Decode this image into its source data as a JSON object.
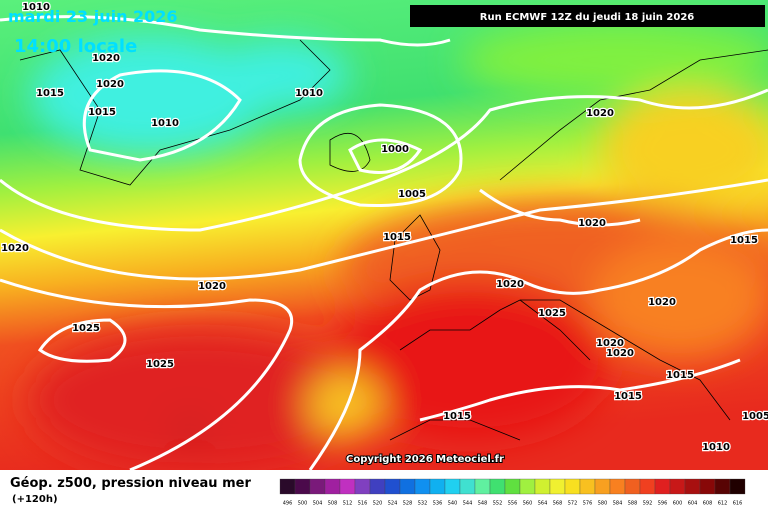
{
  "header": {
    "date": "mardi 23 juin 2026",
    "time": "14:00 locale",
    "run": "Run ECMWF 12Z du jeudi 18 juin 2026"
  },
  "isobar_labels": [
    "1010",
    "1020",
    "1015",
    "1020",
    "1015",
    "1010",
    "1010",
    "1000",
    "1005",
    "1015",
    "1020",
    "1020",
    "1015",
    "1020",
    "1020",
    "1020",
    "1020",
    "1025",
    "1025",
    "1020",
    "1020",
    "1025",
    "1015",
    "1015",
    "1015",
    "1005",
    "1010"
  ],
  "copyright": "Copyright 2026 Meteociel.fr",
  "footer": {
    "title": "Géop. z500, pression niveau mer",
    "lead": "(+120h)"
  },
  "legend": {
    "labels": [
      "496",
      "500",
      "504",
      "508",
      "512",
      "516",
      "520",
      "524",
      "528",
      "532",
      "536",
      "540",
      "544",
      "548",
      "552",
      "556",
      "560",
      "564",
      "568",
      "572",
      "576",
      "580",
      "584",
      "588",
      "592",
      "596",
      "600",
      "604",
      "608",
      "612",
      "616"
    ],
    "colors": [
      "#2a0a2a",
      "#4b0a4b",
      "#7a1a7a",
      "#a020a0",
      "#c030c0",
      "#8040c0",
      "#4040c0",
      "#2050d0",
      "#1070e0",
      "#1090f0",
      "#10b0f0",
      "#20d0f0",
      "#40e0d0",
      "#60f0a0",
      "#40e070",
      "#60e040",
      "#a0f040",
      "#d0f030",
      "#f0f030",
      "#f8e020",
      "#f8c020",
      "#f8a020",
      "#f88020",
      "#f06020",
      "#f04020",
      "#e02020",
      "#c81818",
      "#a81010",
      "#880808",
      "#580404",
      "#200000"
    ]
  }
}
